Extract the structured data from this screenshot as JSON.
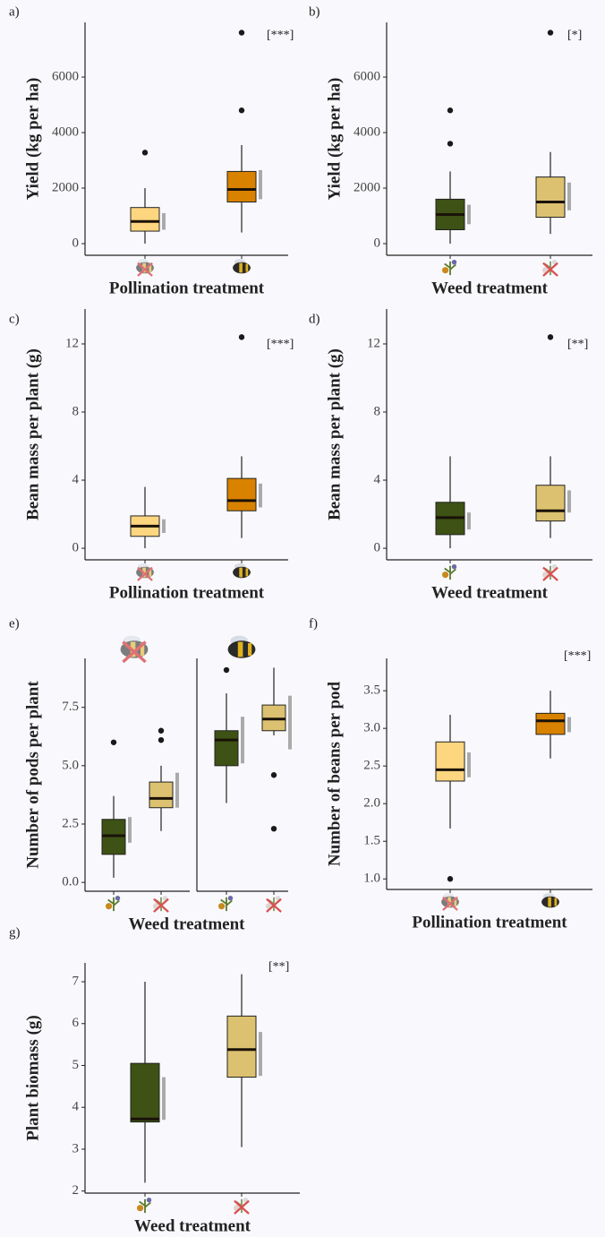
{
  "chart_data": [
    {
      "type": "box",
      "panel": "a)",
      "y_label": "Yield (kg per ha)",
      "x_label": "Pollination treatment",
      "annotation": "[***]",
      "categories": [
        null,
        null
      ],
      "ylim": [
        -420,
        7970
      ],
      "yticks": [
        0,
        2000,
        4000,
        6000
      ],
      "interval_color": "#aaaaaa",
      "boxes": [
        {
          "color": "#ffd680",
          "min": 0,
          "q1": 450,
          "median": 800,
          "q3": 1300,
          "max": 2000,
          "outliers": [
            3280
          ],
          "interval": [
            500,
            1100
          ]
        },
        {
          "color": "#d98200",
          "min": 400,
          "q1": 1500,
          "median": 1950,
          "q3": 2600,
          "max": 3550,
          "outliers": [
            4800,
            7600
          ],
          "interval": [
            1600,
            2650
          ]
        }
      ]
    },
    {
      "type": "box",
      "panel": "b)",
      "y_label": "Yield (kg per ha)",
      "x_label": "Weed treatment",
      "annotation": "[*]",
      "categories": [
        null,
        null
      ],
      "ylim": [
        -420,
        7970
      ],
      "yticks": [
        0,
        2000,
        4000,
        6000
      ],
      "interval_color": "#aaaaaa",
      "boxes": [
        {
          "color": "#3d5214",
          "min": 0,
          "q1": 500,
          "median": 1050,
          "q3": 1600,
          "max": 2600,
          "outliers": [
            3600,
            4800
          ],
          "interval": [
            700,
            1400
          ]
        },
        {
          "color": "#dcc170",
          "min": 350,
          "q1": 950,
          "median": 1500,
          "q3": 2400,
          "max": 3300,
          "outliers": [
            7600
          ],
          "interval": [
            1200,
            2200
          ]
        }
      ]
    },
    {
      "type": "box",
      "panel": "c)",
      "y_label": "Bean mass per plant (g)",
      "x_label": "Pollination treatment",
      "annotation": "[***]",
      "categories": [
        null,
        null
      ],
      "ylim": [
        -0.68,
        14.05
      ],
      "yticks": [
        0,
        4,
        8,
        12
      ],
      "interval_color": "#aaaaaa",
      "boxes": [
        {
          "color": "#ffd680",
          "min": 0,
          "q1": 0.7,
          "median": 1.3,
          "q3": 1.9,
          "max": 3.6,
          "outliers": [],
          "interval": [
            0.9,
            1.7
          ]
        },
        {
          "color": "#d98200",
          "min": 0.6,
          "q1": 2.2,
          "median": 2.8,
          "q3": 4.1,
          "max": 5.4,
          "outliers": [
            12.4
          ],
          "interval": [
            2.4,
            3.8
          ]
        }
      ]
    },
    {
      "type": "box",
      "panel": "d)",
      "y_label": "Bean mass per plant (g)",
      "x_label": "Weed treatment",
      "annotation": "[**]",
      "categories": [
        null,
        null
      ],
      "ylim": [
        -0.68,
        14.05
      ],
      "yticks": [
        0,
        4,
        8,
        12
      ],
      "interval_color": "#aaaaaa",
      "boxes": [
        {
          "color": "#3d5214",
          "min": 0,
          "q1": 0.8,
          "median": 1.8,
          "q3": 2.7,
          "max": 5.4,
          "outliers": [],
          "interval": [
            1.1,
            2.1
          ]
        },
        {
          "color": "#dcc170",
          "min": 0.6,
          "q1": 1.6,
          "median": 2.2,
          "q3": 3.7,
          "max": 5.4,
          "outliers": [
            12.4
          ],
          "interval": [
            2.1,
            3.4
          ]
        }
      ]
    },
    {
      "type": "box",
      "panel": "e)",
      "y_label": "Number of pods per plant",
      "x_label": "Weed treatment",
      "categories": [
        null,
        null,
        null,
        null
      ],
      "ylim": [
        -0.38,
        9.6
      ],
      "yticks": [
        {
          "value": 0,
          "label": "0.0"
        },
        2.5,
        {
          "value": 5,
          "label": "5.0"
        },
        7.5
      ],
      "interval_color": "#aaaaaa",
      "boxes": [
        {
          "color": "#3d5214",
          "min": 0.2,
          "q1": 1.2,
          "median": 2.0,
          "q3": 2.7,
          "max": 3.7,
          "outliers": [
            6.0
          ],
          "interval": [
            1.7,
            2.8
          ]
        },
        {
          "color": "#dcc170",
          "min": 2.2,
          "q1": 3.2,
          "median": 3.6,
          "q3": 4.3,
          "max": 5.0,
          "outliers": [
            6.1,
            6.5
          ],
          "interval": [
            3.2,
            4.7
          ]
        },
        {
          "color": "#3d5214",
          "min": 3.4,
          "q1": 5.0,
          "median": 6.1,
          "q3": 6.5,
          "max": 8.1,
          "outliers": [
            9.1
          ],
          "interval": [
            5.1,
            7.1
          ]
        },
        {
          "color": "#dcc170",
          "min": 6.3,
          "q1": 6.5,
          "median": 7.0,
          "q3": 7.6,
          "max": 9.2,
          "outliers": [
            4.6,
            2.3
          ],
          "interval": [
            5.7,
            8.0
          ]
        }
      ]
    },
    {
      "type": "box",
      "panel": "f)",
      "y_label": "Number of beans per pod",
      "x_label": "Pollination treatment",
      "annotation": "[***]",
      "categories": [
        null,
        null
      ],
      "ylim": [
        0.86,
        3.93
      ],
      "yticks": [
        {
          "value": 1,
          "label": "1.0"
        },
        1.5,
        {
          "value": 2,
          "label": "2.0"
        },
        2.5,
        {
          "value": 3,
          "label": "3.0"
        },
        3.5
      ],
      "interval_color": "#aaaaaa",
      "boxes": [
        {
          "color": "#ffd680",
          "min": 1.67,
          "q1": 2.3,
          "median": 2.45,
          "q3": 2.82,
          "max": 3.18,
          "outliers": [
            1.0
          ],
          "interval": [
            2.35,
            2.68
          ]
        },
        {
          "color": "#d98200",
          "min": 2.6,
          "q1": 2.92,
          "median": 3.1,
          "q3": 3.2,
          "max": 3.5,
          "outliers": [],
          "interval": [
            2.95,
            3.15
          ]
        }
      ]
    },
    {
      "type": "box",
      "panel": "g)",
      "y_label": "Plant biomass (g)",
      "x_label": "Weed treatment",
      "annotation": "[**]",
      "categories": [
        null,
        null
      ],
      "ylim": [
        1.95,
        7.45
      ],
      "yticks": [
        2,
        3,
        4,
        5,
        6,
        7
      ],
      "interval_color": "#aaaaaa",
      "boxes": [
        {
          "color": "#3d5214",
          "min": 2.2,
          "q1": 3.65,
          "median": 3.72,
          "q3": 5.05,
          "max": 7.0,
          "outliers": [],
          "interval": [
            3.7,
            4.72
          ]
        },
        {
          "color": "#dcc170",
          "min": 3.05,
          "q1": 4.72,
          "median": 5.38,
          "q3": 6.18,
          "max": 7.18,
          "outliers": [],
          "interval": [
            4.75,
            5.8
          ]
        }
      ]
    }
  ]
}
